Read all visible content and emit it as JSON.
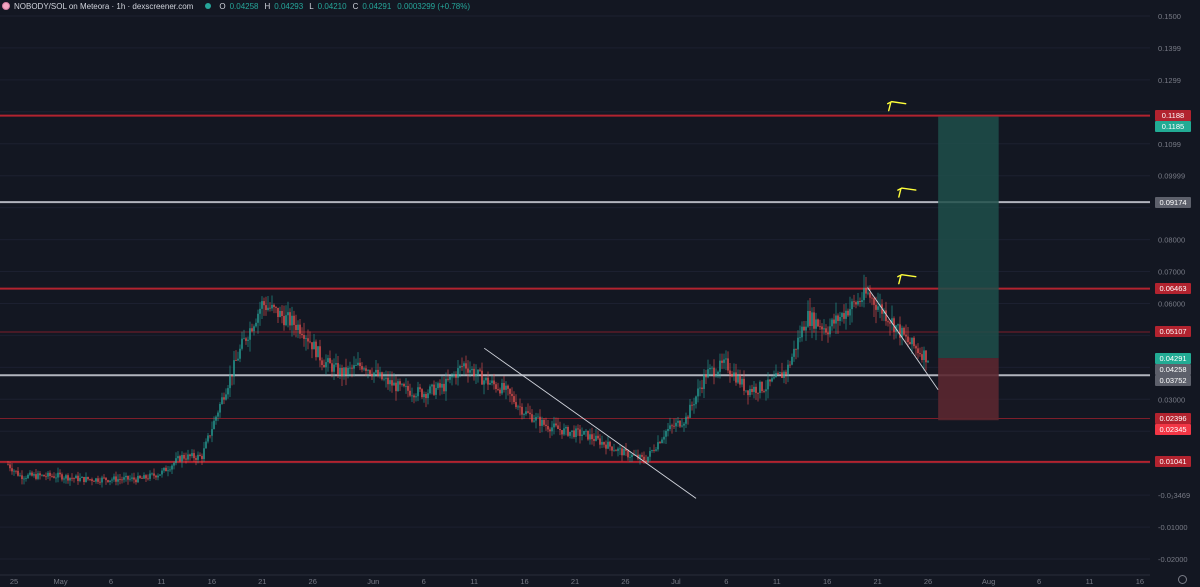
{
  "header": {
    "symbol_title": "NOBODY/SOL on Meteora · 1h · dexscreener.com",
    "ohlc": [
      {
        "k": "O",
        "v": "0.04258"
      },
      {
        "k": "H",
        "v": "0.04293"
      },
      {
        "k": "L",
        "v": "0.04210"
      },
      {
        "k": "C",
        "v": "0.04291"
      }
    ],
    "change": "0.0003299 (+0.78%)"
  },
  "colors": {
    "background": "#131722",
    "bull": "#26a69a",
    "bear": "#ef5350",
    "resistance_line": "#b2232f",
    "neutral_line": "#b2b5be",
    "target_zone": "#1f4f4a",
    "stop_zone": "#5b2730",
    "annotation": "#ffff3b"
  },
  "chart_data": {
    "type": "line",
    "title": "",
    "xlabel": "",
    "ylabel": "",
    "ylim": [
      -0.025,
      0.155
    ],
    "x_ticks": [
      "25",
      "May",
      "6",
      "11",
      "16",
      "21",
      "26",
      "Jun",
      "6",
      "11",
      "16",
      "21",
      "26",
      "Jul",
      "6",
      "11",
      "16",
      "21",
      "26",
      "Aug",
      "6",
      "11",
      "16"
    ],
    "y_ticks": [
      "0.1500",
      "0.1399",
      "0.1299",
      "0.1099",
      "0.09999",
      "0.08000",
      "0.07000",
      "0.06000",
      "0.03000",
      "-0.0₁3469",
      "-0.01000",
      "-0.02000"
    ],
    "series": [
      {
        "x": [
          "Apr 25",
          "Apr 27",
          "Apr 29",
          "May 1",
          "May 3",
          "May 5",
          "May 7",
          "May 9",
          "May 11",
          "May 13",
          "May 15",
          "May 17",
          "May 19",
          "May 21",
          "May 23",
          "May 25",
          "May 27",
          "May 29",
          "May 31",
          "Jun 2",
          "Jun 4",
          "Jun 6",
          "Jun 8",
          "Jun 10",
          "Jun 12",
          "Jun 14",
          "Jun 16",
          "Jun 18",
          "Jun 20",
          "Jun 22",
          "Jun 24",
          "Jun 26",
          "Jun 28",
          "Jun 30",
          "Jul 2",
          "Jul 4",
          "Jul 6",
          "Jul 8",
          "Jul 10",
          "Jul 12",
          "Jul 14",
          "Jul 16",
          "Jul 18",
          "Jul 20",
          "Jul 22",
          "Jul 24",
          "Jul 26"
        ],
        "values": [
          0.012,
          0.006,
          0.006,
          0.006,
          0.005,
          0.005,
          0.005,
          0.005,
          0.007,
          0.012,
          0.012,
          0.03,
          0.047,
          0.06,
          0.056,
          0.052,
          0.042,
          0.038,
          0.041,
          0.036,
          0.033,
          0.032,
          0.034,
          0.041,
          0.036,
          0.033,
          0.026,
          0.022,
          0.02,
          0.019,
          0.016,
          0.013,
          0.011,
          0.02,
          0.024,
          0.038,
          0.041,
          0.033,
          0.034,
          0.039,
          0.056,
          0.052,
          0.058,
          0.063,
          0.056,
          0.048,
          0.043
        ]
      }
    ],
    "horizontal_levels": [
      {
        "price": 0.1188,
        "kind": "resistance"
      },
      {
        "price": 0.09174,
        "kind": "neutral"
      },
      {
        "price": 0.06463,
        "kind": "resistance"
      },
      {
        "price": 0.05107,
        "kind": "resistance-thin"
      },
      {
        "price": 0.03752,
        "kind": "neutral"
      },
      {
        "price": 0.02396,
        "kind": "resistance-thin"
      },
      {
        "price": 0.01041,
        "kind": "resistance"
      }
    ],
    "trendlines": [
      {
        "from": [
          "Jun 12",
          0.046
        ],
        "to": [
          "Jul 3",
          -0.001
        ]
      },
      {
        "from": [
          "Jul 20",
          0.065
        ],
        "to": [
          "Jul 27",
          0.033
        ]
      }
    ],
    "long_position": {
      "from": "Jul 27",
      "to": "Aug 2",
      "entry": 0.04291,
      "target": 0.1185,
      "stop": 0.02345
    },
    "price_badges": [
      {
        "label": "0.1188",
        "price": 0.1188,
        "color": "#b2232f"
      },
      {
        "label": "0.1185",
        "price": 0.1185,
        "color": "#22ab94"
      },
      {
        "label": "0.09174",
        "price": 0.09174,
        "color": "#5d606b"
      },
      {
        "label": "0.06463",
        "price": 0.06463,
        "color": "#b2232f"
      },
      {
        "label": "0.05107",
        "price": 0.05107,
        "color": "#b2232f"
      },
      {
        "label": "0.04291",
        "price": 0.04291,
        "color": "#22ab94"
      },
      {
        "label": "0.04258",
        "price": 0.04258,
        "color": "#5d606b"
      },
      {
        "label": "0.03752",
        "price": 0.03752,
        "color": "#5d606b"
      },
      {
        "label": "0.02396",
        "price": 0.02396,
        "color": "#b2232f"
      },
      {
        "label": "0.02345",
        "price": 0.02345,
        "color": "#f23645"
      },
      {
        "label": "0.01041",
        "price": 0.01041,
        "color": "#b2232f"
      }
    ]
  }
}
